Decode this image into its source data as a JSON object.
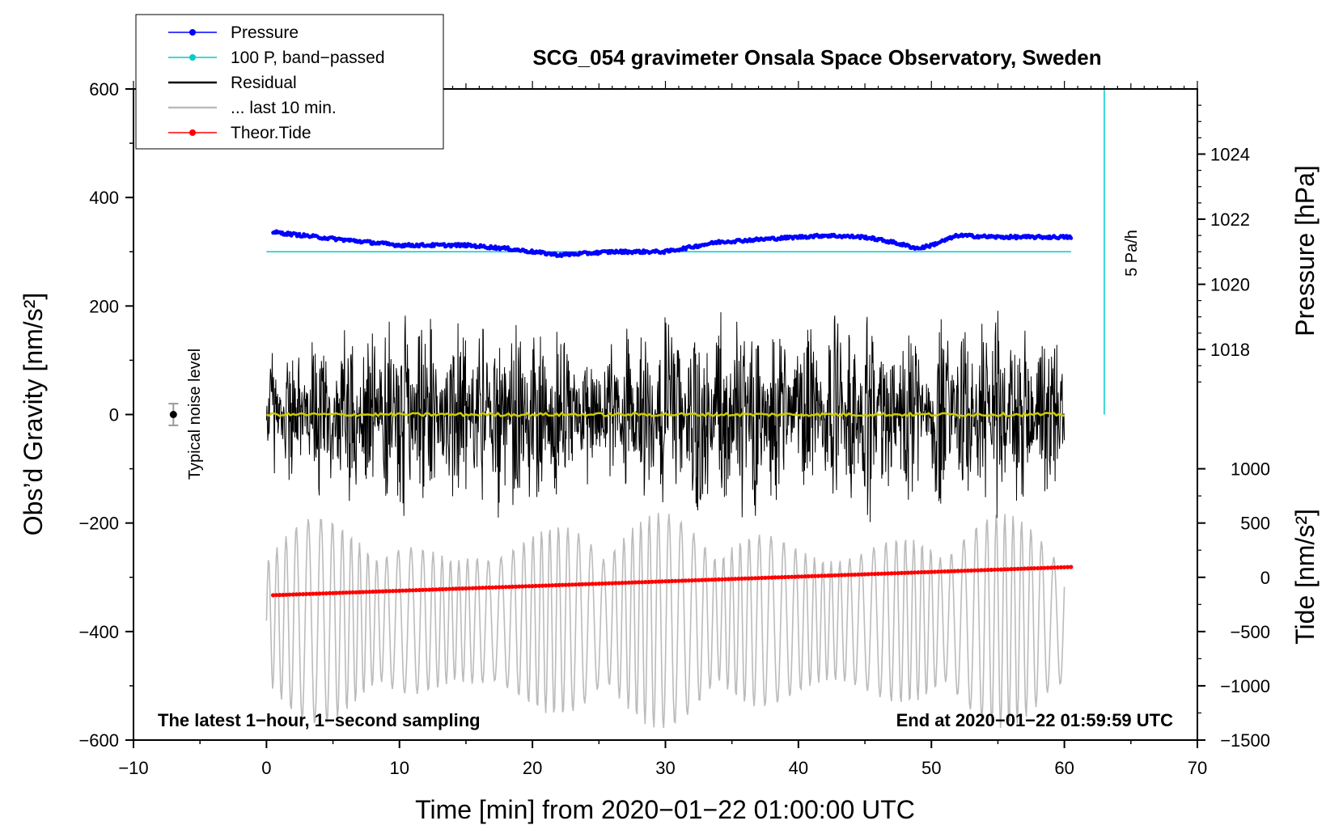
{
  "chart_data": {
    "type": "line",
    "title": "SCG_054 gravimeter Onsala Space Observatory, Sweden",
    "xlabel": "Time [min] from 2020−01−22 01:00:00 UTC",
    "ylabel": "Obs’d Gravity [nm/s²]",
    "y2label_pressure": "Pressure [hPa]",
    "y2label_tide": "Tide [nm/s²]",
    "xlim": [
      -10,
      70
    ],
    "ylim": [
      -600,
      600
    ],
    "x_ticks": [
      "−10",
      "0",
      "10",
      "20",
      "30",
      "40",
      "50",
      "60",
      "70"
    ],
    "x_tick_values": [
      -10,
      0,
      10,
      20,
      30,
      40,
      50,
      60,
      70
    ],
    "y_ticks": [
      "600",
      "400",
      "200",
      "0",
      "−200",
      "−400",
      "−600"
    ],
    "y_tick_values": [
      600,
      400,
      200,
      0,
      -200,
      -400,
      -600
    ],
    "pressure_axis": {
      "ticks": [
        "1024",
        "1022",
        "1020",
        "1018"
      ],
      "values": [
        1024,
        1022,
        1020,
        1018
      ],
      "grav_at_1022": 360,
      "grav_per_hPa": 60
    },
    "tide_axis": {
      "ticks": [
        "1000",
        "500",
        "0",
        "−500",
        "−1000",
        "−1500"
      ],
      "values": [
        1000,
        500,
        0,
        -500,
        -1000,
        -1500
      ],
      "grav_per_unit": 0.2,
      "grav_offset": -300
    },
    "legend": {
      "position": "top-left",
      "entries": [
        {
          "label": "Pressure",
          "color": "#0000ff",
          "marker": true
        },
        {
          "label": "100 P, band−passed",
          "color": "#00cccc",
          "marker": true
        },
        {
          "label": "Residual",
          "color": "#000000",
          "marker": false
        },
        {
          "label": "... last 10 min.",
          "color": "#bbbbbb",
          "marker": false
        },
        {
          "label": "Theor.Tide",
          "color": "#ff0000",
          "marker": true
        }
      ]
    },
    "series": [
      {
        "name": "Pressure",
        "color": "#0000ff",
        "unit": "hPa",
        "x": [
          0.5,
          5,
          10,
          15,
          18,
          22,
          26,
          30,
          34,
          38,
          42,
          45,
          47,
          49,
          50,
          52,
          55,
          58,
          60.5
        ],
        "values": [
          1021.6,
          1021.4,
          1021.2,
          1021.2,
          1021.1,
          1020.9,
          1021.0,
          1021.0,
          1021.3,
          1021.4,
          1021.5,
          1021.45,
          1021.3,
          1021.1,
          1021.2,
          1021.5,
          1021.45,
          1021.45,
          1021.45
        ]
      },
      {
        "name": "100 P, band-passed",
        "color": "#00cccc",
        "x": [
          0,
          60.5
        ],
        "values": [
          300,
          300
        ]
      },
      {
        "name": "Residual",
        "color": "#000000",
        "x_range": [
          0,
          60
        ],
        "amplitude_envelope": [
          150,
          200,
          240,
          200,
          230,
          150,
          220,
          240,
          180,
          230,
          200,
          230,
          180
        ]
      },
      {
        "name": "Residual (smoothed)",
        "color": "#cccc00",
        "x": [
          0,
          60
        ],
        "values": [
          0,
          0
        ]
      },
      {
        "name": "... last 10 min.",
        "color": "#bbbbbb",
        "x_range": [
          0,
          60
        ],
        "amplitude_range": [
          -580,
          -180
        ]
      },
      {
        "name": "Theor.Tide",
        "color": "#ff0000",
        "unit": "nm/s²",
        "x": [
          0.5,
          60.5
        ],
        "values": [
          -165,
          95
        ]
      }
    ],
    "noise_marker": {
      "x": -7,
      "value": 0,
      "error": 20,
      "label": "Typical noise level"
    },
    "scale_bar": {
      "x": 63,
      "from": 0,
      "to": 600,
      "label": "5 Pa/h"
    },
    "annotations": {
      "left": "The latest 1−hour, 1−second sampling",
      "right": "End at 2020−01−22 01:59:59 UTC"
    }
  }
}
